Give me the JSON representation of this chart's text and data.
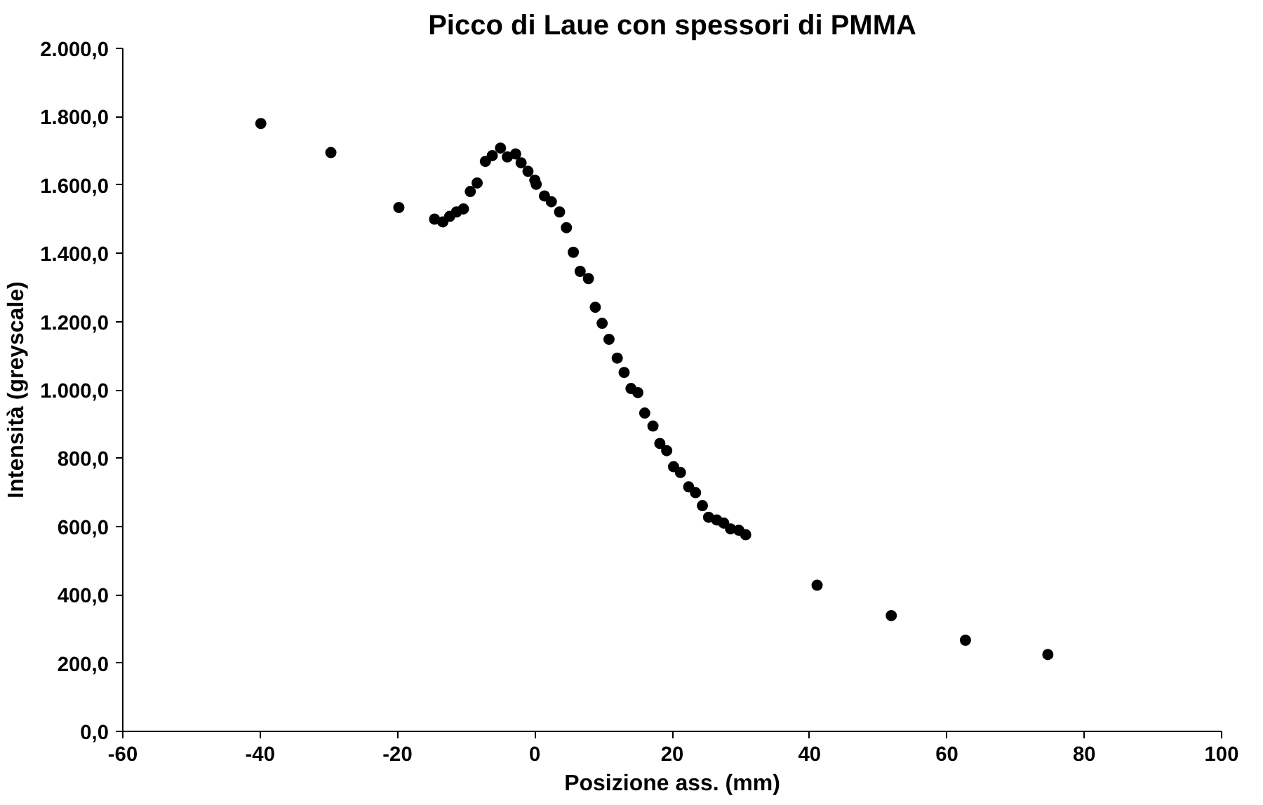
{
  "chart_data": {
    "type": "scatter",
    "title": "Picco di Laue con spessori di PMMA",
    "xlabel": "Posizione ass. (mm)",
    "ylabel": "Intensità (greyscale)",
    "series": [
      {
        "color": "#000000",
        "x": [
          -39.9,
          -29.7,
          -19.8,
          -14.6,
          -13.4,
          -12.4,
          -11.4,
          -10.4,
          -9.4,
          -8.4,
          -7.2,
          -6.2,
          -5.0,
          -4.0,
          -2.8,
          -2.0,
          -1.0,
          0,
          0.2,
          1.4,
          2.4,
          3.6,
          4.6,
          5.6,
          6.6,
          7.8,
          8.8,
          9.8,
          10.8,
          12.0,
          13.0,
          14.0,
          15.0,
          16.0,
          17.2,
          18.2,
          19.2,
          20.2,
          21.2,
          22.4,
          23.4,
          24.4,
          25.3,
          26.5,
          27.5,
          28.5,
          29.7,
          30.7,
          41.1,
          51.9,
          62.7,
          74.7
        ],
        "values": [
          1780,
          1695,
          1534,
          1500,
          1492,
          1508,
          1521,
          1530,
          1581,
          1606,
          1669,
          1686,
          1708,
          1682,
          1691,
          1665,
          1640,
          1614,
          1602,
          1568,
          1551,
          1521,
          1475,
          1403,
          1347,
          1326,
          1242,
          1195,
          1148,
          1093,
          1051,
          1004,
          992,
          932,
          894,
          843,
          822,
          775,
          758,
          716,
          699,
          661,
          627,
          619,
          610,
          593,
          589,
          576,
          428,
          339,
          267,
          225
        ]
      }
    ],
    "xlim": [
      -60,
      100
    ],
    "xticks": [
      -60,
      -40,
      -20,
      0,
      20,
      40,
      60,
      80,
      100
    ],
    "ylim": [
      0,
      2000
    ],
    "yticks": [
      {
        "value": 0,
        "label": "0,0"
      },
      {
        "value": 200,
        "label": "200,0"
      },
      {
        "value": 400,
        "label": "400,0"
      },
      {
        "value": 600,
        "label": "600,0"
      },
      {
        "value": 800,
        "label": "800,0"
      },
      {
        "value": 1000,
        "label": "1.000,0"
      },
      {
        "value": 1200,
        "label": "1.200,0"
      },
      {
        "value": 1400,
        "label": "1.400,0"
      },
      {
        "value": 1600,
        "label": "1.600,0"
      },
      {
        "value": 1800,
        "label": "1.800,0"
      },
      {
        "value": 2000,
        "label": "2.000,0"
      }
    ],
    "grid": false,
    "marker": "circle"
  }
}
